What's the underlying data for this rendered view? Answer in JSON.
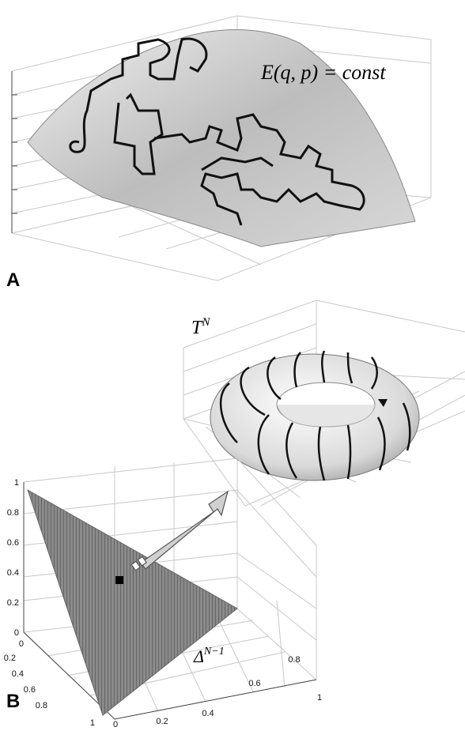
{
  "panels": [
    {
      "label": "A",
      "annotation": "E(q, p) = const"
    },
    {
      "label": "B",
      "torus_label": {
        "base": "T",
        "sup": "N"
      },
      "simplex_label": {
        "base": "Δ",
        "sup": "N−1"
      },
      "vertical_ticks": [
        "1",
        "0.8",
        "0.6",
        "0.4",
        "0.2",
        "0"
      ],
      "left_depth_ticks": [
        "0",
        "0.2",
        "0.4",
        "0.6",
        "0.8",
        "1"
      ],
      "right_depth_ticks": [
        "0",
        "0.2",
        "0.4",
        "0.6",
        "0.8",
        "1"
      ]
    }
  ]
}
